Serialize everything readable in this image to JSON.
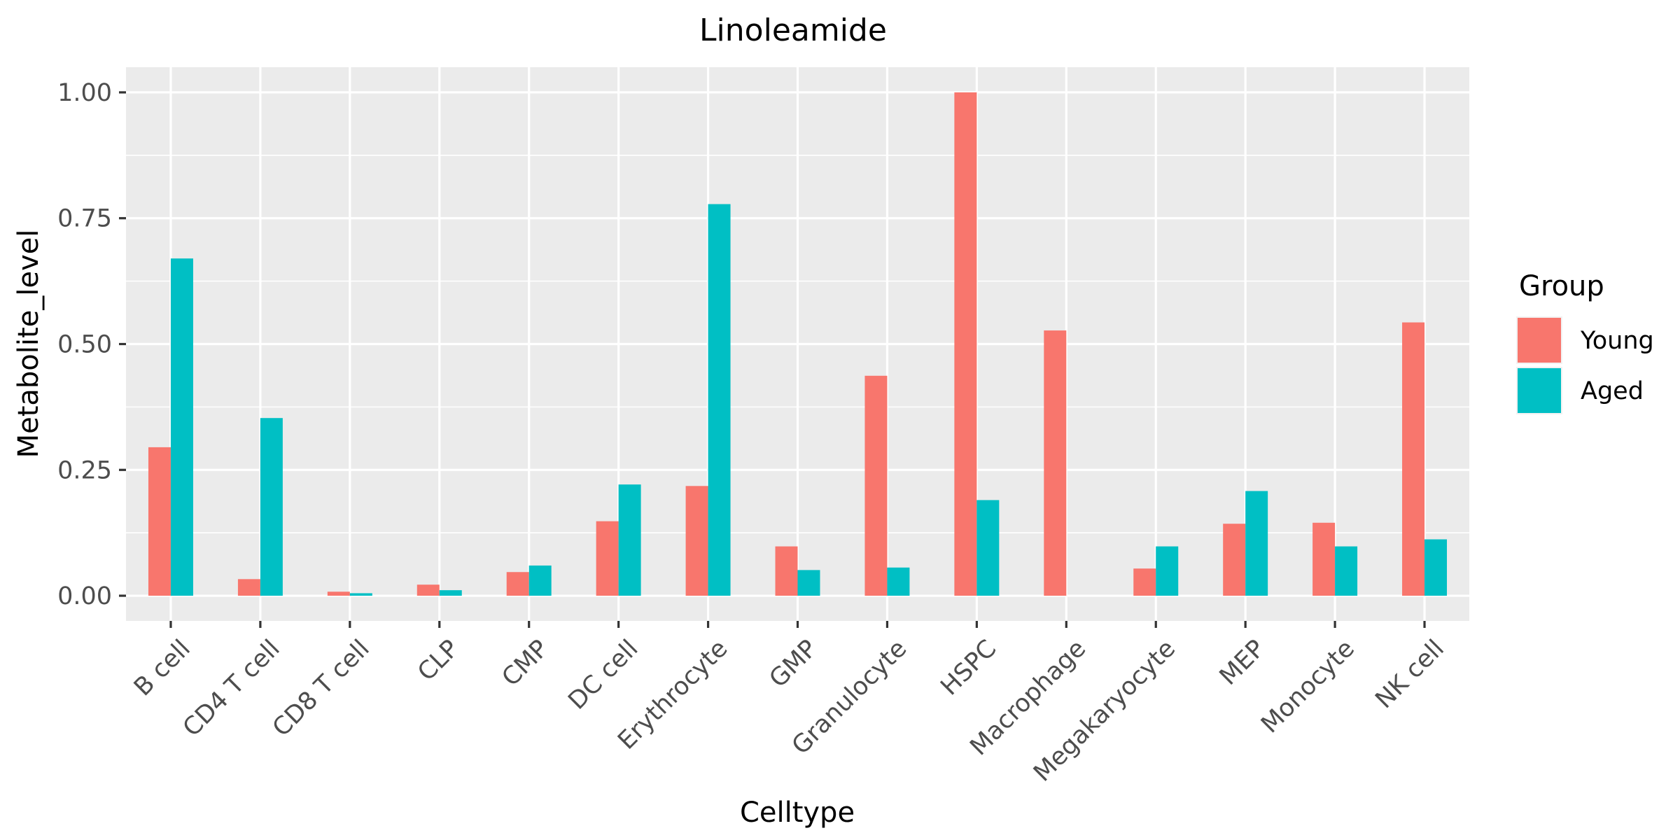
{
  "chart_data": {
    "type": "bar",
    "title": "Linoleamide",
    "xlabel": "Celltype",
    "ylabel": "Metabolite_level",
    "ylim": [
      -0.05,
      1.05
    ],
    "yticks": [
      0.0,
      0.25,
      0.5,
      0.75,
      1.0
    ],
    "ytick_labels": [
      "0.00",
      "0.25",
      "0.50",
      "0.75",
      "1.00"
    ],
    "grid": true,
    "legend": {
      "title": "Group",
      "placement": "right"
    },
    "categories": [
      "B cell",
      "CD4 T cell",
      "CD8 T cell",
      "CLP",
      "CMP",
      "DC cell",
      "Erythrocyte",
      "GMP",
      "Granulocyte",
      "HSPC",
      "Macrophage",
      "Megakaryocyte",
      "MEP",
      "Monocyte",
      "NK cell"
    ],
    "series": [
      {
        "name": "Young",
        "color": "#F8766D",
        "values": [
          0.295,
          0.033,
          0.008,
          0.022,
          0.047,
          0.148,
          0.218,
          0.098,
          0.437,
          1.0,
          0.527,
          0.054,
          0.143,
          0.145,
          0.543
        ]
      },
      {
        "name": "Aged",
        "color": "#00BFC4",
        "values": [
          0.67,
          0.353,
          0.005,
          0.011,
          0.06,
          0.221,
          0.778,
          0.051,
          0.056,
          0.19,
          0.0,
          0.098,
          0.208,
          0.098,
          0.112
        ]
      }
    ]
  },
  "colors": {
    "panel_background": "#EBEBEB",
    "grid_line": "#FFFFFF",
    "axis_text": "#4D4D4D"
  }
}
